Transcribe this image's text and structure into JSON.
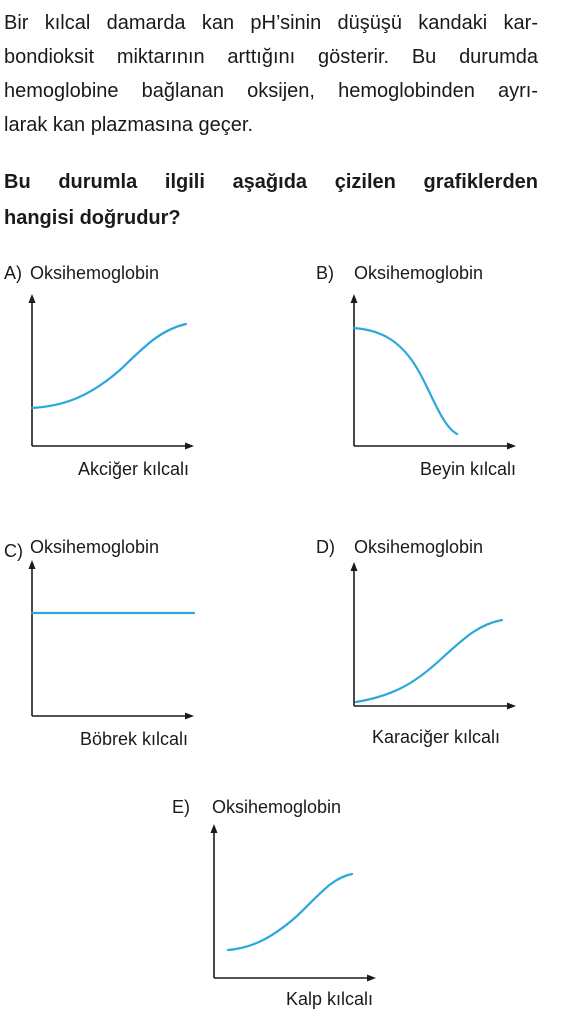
{
  "intro": {
    "lines": [
      "Bir kılcal damarda kan pH’sinin düşüşü kandaki kar-",
      "bondioksit miktarının arttığını gösterir. Bu durumda",
      "hemoglobine bağlanan oksijen, hemoglobinden ayrı-",
      "larak kan plazmasına geçer."
    ]
  },
  "question": {
    "lines": [
      "Bu durumla ilgili aşağıda çizilen grafiklerden",
      "hangisi doğrudur?"
    ]
  },
  "options": [
    {
      "letter": "A)",
      "ylabel": "Oksihemoglobin",
      "xlabel": "Akciğer kılcalı"
    },
    {
      "letter": "B)",
      "ylabel": "Oksihemoglobin",
      "xlabel": "Beyin kılcalı"
    },
    {
      "letter": "C)",
      "ylabel": "Oksihemoglobin",
      "xlabel": "Böbrek kılcalı"
    },
    {
      "letter": "D)",
      "ylabel": "Oksihemoglobin",
      "xlabel": "Karaciğer kılcalı"
    },
    {
      "letter": "E)",
      "ylabel": "Oksihemoglobin",
      "xlabel": "Kalp kılcalı"
    }
  ],
  "colors": {
    "curve": "#2aa8dc",
    "axis": "#1a1a1a"
  }
}
